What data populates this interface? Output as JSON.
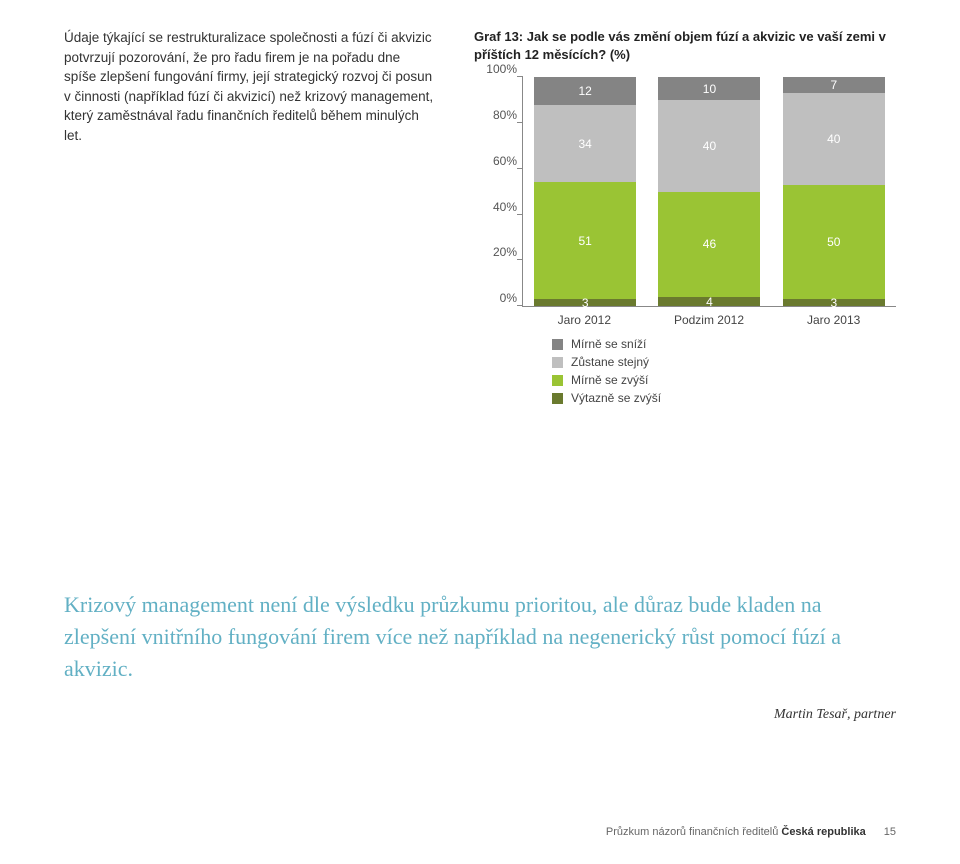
{
  "leftText": "Údaje týkající se restrukturalizace společnosti a fúzí či akvizic potvrzují pozorování, že pro řadu firem je na pořadu dne spíše zlepšení fungování firmy, její strategický rozvoj či posun v činnosti (například fúzí či akvizicí) než krizový management, který zaměstnával řadu finančních ředitelů během minulých let.",
  "chart": {
    "title": "Graf 13: Jak se podle vás změní objem fúzí a akvizic ve vaší zemi v příštích 12 měsících? (%)",
    "type": "stacked-bar",
    "yticks": [
      "0%",
      "20%",
      "40%",
      "60%",
      "80%",
      "100%"
    ],
    "categories": [
      "Jaro 2012",
      "Podzim 2012",
      "Jaro 2013"
    ],
    "series": [
      {
        "name": "Výtazně se zvýší",
        "color": "#6a7a2e"
      },
      {
        "name": "Mírně se zvýší",
        "color": "#9ac434"
      },
      {
        "name": "Zůstane stejný",
        "color": "#bfbfbf"
      },
      {
        "name": "Mírně se sníží",
        "color": "#848484"
      }
    ],
    "legendOrder": [
      "Mírně se sníží",
      "Zůstane stejný",
      "Mírně se zvýší",
      "Výtazně se zvýší"
    ],
    "legendColors": {
      "Mírně se sníží": "#848484",
      "Zůstane stejný": "#bfbfbf",
      "Mírně se zvýší": "#9ac434",
      "Výtazně se zvýší": "#6a7a2e"
    },
    "data": [
      {
        "cat": "Jaro 2012",
        "segments": [
          {
            "v": 3,
            "c": "#6a7a2e"
          },
          {
            "v": 51,
            "c": "#9ac434"
          },
          {
            "v": 34,
            "c": "#bfbfbf"
          },
          {
            "v": 12,
            "c": "#848484"
          }
        ]
      },
      {
        "cat": "Podzim 2012",
        "segments": [
          {
            "v": 4,
            "c": "#6a7a2e"
          },
          {
            "v": 46,
            "c": "#9ac434"
          },
          {
            "v": 40,
            "c": "#bfbfbf"
          },
          {
            "v": 10,
            "c": "#848484"
          }
        ]
      },
      {
        "cat": "Jaro 2013",
        "segments": [
          {
            "v": 3,
            "c": "#6a7a2e"
          },
          {
            "v": 50,
            "c": "#9ac434"
          },
          {
            "v": 40,
            "c": "#bfbfbf"
          },
          {
            "v": 7,
            "c": "#848484"
          }
        ]
      }
    ],
    "barWidth": 102,
    "plotHeight": 230,
    "label_fontsize": 12
  },
  "quote": "Krizový management není dle výsledku průzkumu prioritou, ale důraz bude kladen na zlepšení vnitřního fungování firem více než například na negenerický růst pomocí fúzí a akvizic.",
  "attribution": "Martin Tesař, partner",
  "footer": {
    "text": "Průzkum názorů finančních ředitelů ",
    "bold": "Česká republika",
    "page": "15"
  }
}
